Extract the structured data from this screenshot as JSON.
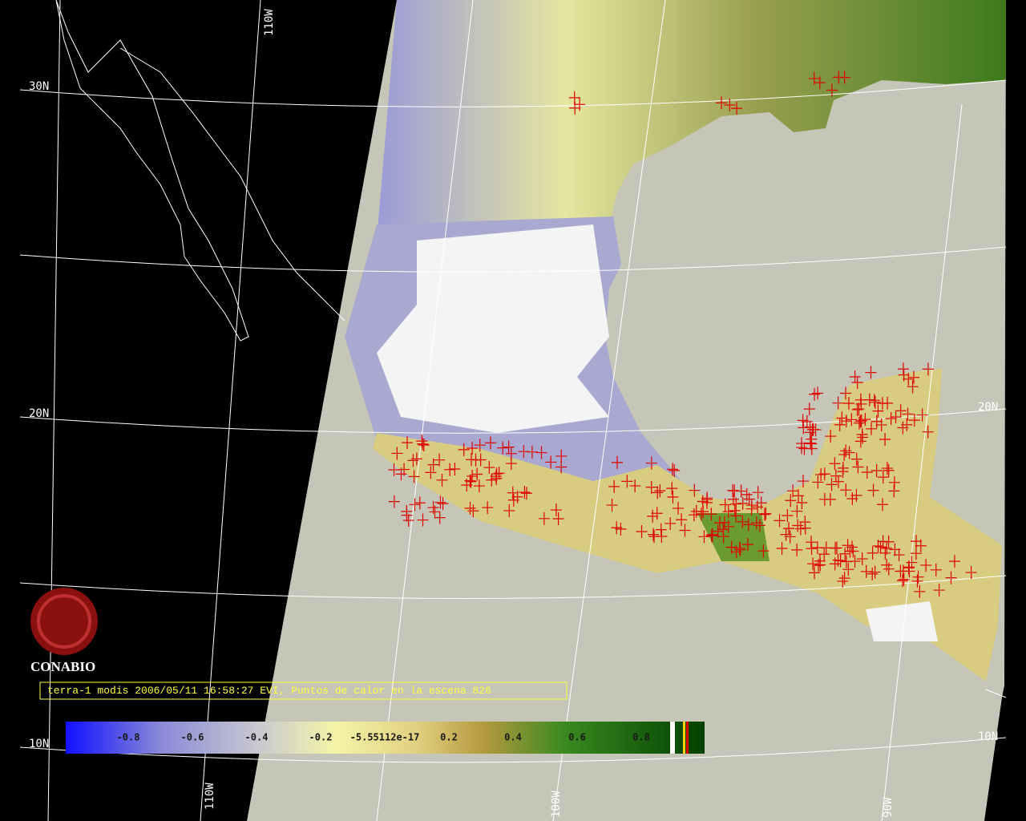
{
  "graticule_labels": {
    "top_110w": "110W",
    "left_30n": "30N",
    "left_20n": "20N",
    "left_10n": "10N",
    "right_20n": "20N",
    "right_10n": "10N",
    "bottom_110w": "110W",
    "bottom_100w": "100W",
    "bottom_90w": "90W"
  },
  "logo": {
    "name": "CONABIO"
  },
  "caption": "terra-1 modis 2006/05/11 16:58:27 EVI, Puntos de calor en la escena 826",
  "colorbar": {
    "labels": [
      "-0.8",
      "-0.6",
      "-0.4",
      "-0.2",
      "-5.55112e-17",
      "0.2",
      "0.4",
      "0.6",
      "0.8"
    ]
  }
}
